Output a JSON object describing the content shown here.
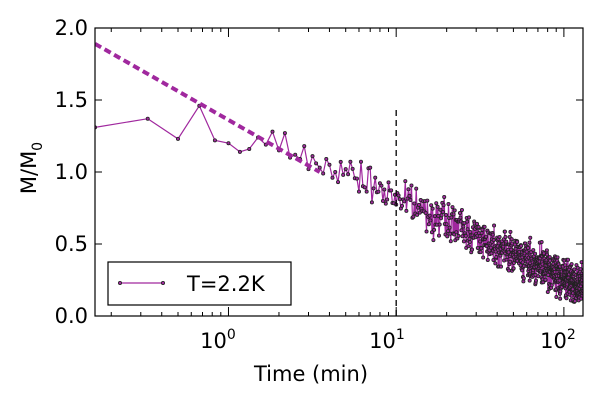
{
  "chart_data": {
    "type": "line",
    "x_scale": "log",
    "xlim": [
      0.16,
      130
    ],
    "ylim": [
      0.0,
      2.0
    ],
    "xlabel": "Time (min)",
    "ylabel_main": "M/M",
    "ylabel_sub": "0",
    "y_ticks": [
      0.0,
      0.5,
      1.0,
      1.5,
      2.0
    ],
    "y_tick_labels": [
      "0.0",
      "0.5",
      "1.0",
      "1.5",
      "2.0"
    ],
    "x_ticks": [
      1,
      10,
      100
    ],
    "x_tick_labels": [
      {
        "base": "10",
        "exp": "0"
      },
      {
        "base": "10",
        "exp": "1"
      },
      {
        "base": "10",
        "exp": "2"
      }
    ],
    "series": [
      {
        "name": "T=2.2K",
        "color": "#a0289e",
        "marker": "dot",
        "points_early": [
          [
            0.16,
            1.31
          ],
          [
            0.33,
            1.37
          ],
          [
            0.5,
            1.23
          ],
          [
            0.67,
            1.46
          ],
          [
            0.83,
            1.22
          ],
          [
            1.0,
            1.2
          ],
          [
            1.17,
            1.14
          ],
          [
            1.33,
            1.16
          ],
          [
            1.5,
            1.24
          ],
          [
            1.67,
            1.19
          ],
          [
            1.83,
            1.28
          ],
          [
            2.0,
            1.15
          ],
          [
            2.17,
            1.27
          ],
          [
            2.33,
            1.1
          ],
          [
            2.5,
            1.12
          ],
          [
            2.67,
            1.09
          ],
          [
            2.83,
            1.18
          ],
          [
            3.0,
            1.02
          ],
          [
            3.17,
            1.11
          ],
          [
            3.33,
            1.06
          ],
          [
            3.5,
            1.03
          ],
          [
            3.67,
            0.99
          ],
          [
            3.83,
            1.09
          ],
          [
            4.0,
            1.05
          ],
          [
            4.17,
            0.96
          ],
          [
            4.33,
            1.0
          ],
          [
            4.5,
            0.93
          ],
          [
            4.67,
            1.07
          ],
          [
            4.83,
            0.98
          ],
          [
            5.0,
            1.02
          ]
        ],
        "dense_trend": {
          "x_start": 5.0,
          "x_end": 130,
          "step": 0.1667,
          "y_start": 1.0,
          "y_end": 0.2,
          "noise": 0.09,
          "seed": 7
        }
      }
    ],
    "fit_line": {
      "style": "dashed",
      "color": "#a0289e",
      "points": [
        [
          0.16,
          1.89
        ],
        [
          3.5,
          1.0
        ]
      ]
    },
    "vline": {
      "x": 10,
      "y_from": 0.0,
      "y_to": 1.45,
      "style": "dashed",
      "color": "#000000"
    },
    "legend": {
      "position": "lower-left",
      "entries": [
        "T=2.2K"
      ]
    }
  }
}
